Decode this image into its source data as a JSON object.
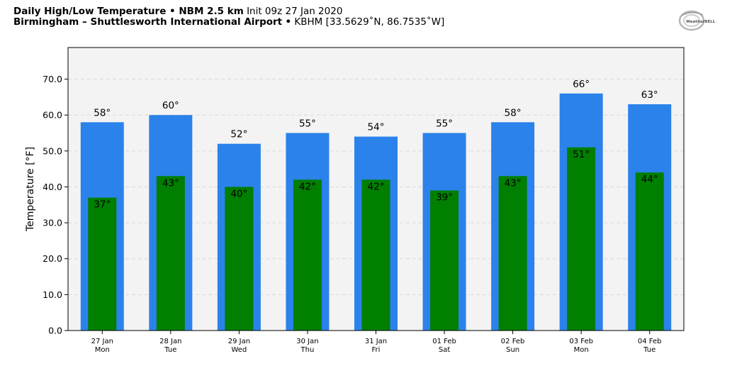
{
  "header": {
    "title_bold": "Daily High/Low Temperature • NBM 2.5 km",
    "title_init": "Init 09z 27 Jan 2020",
    "location_bold": "Birmingham – Shuttlesworth International Airport",
    "location_sep": "•",
    "location_detail": "KBHM [33.5629˚N, 86.7535˚W]"
  },
  "logo": {
    "text": "WeatherBELL"
  },
  "colors": {
    "high": "#2b82ea",
    "low": "#007f00",
    "plot_bg": "#f3f3f3",
    "grid": "#d9d9d9"
  },
  "chart_data": {
    "type": "bar",
    "categories": [
      {
        "date": "27 Jan",
        "day": "Mon"
      },
      {
        "date": "28 Jan",
        "day": "Tue"
      },
      {
        "date": "29 Jan",
        "day": "Wed"
      },
      {
        "date": "30 Jan",
        "day": "Thu"
      },
      {
        "date": "31 Jan",
        "day": "Fri"
      },
      {
        "date": "01 Feb",
        "day": "Sat"
      },
      {
        "date": "02 Feb",
        "day": "Sun"
      },
      {
        "date": "03 Feb",
        "day": "Mon"
      },
      {
        "date": "04 Feb",
        "day": "Tue"
      }
    ],
    "series": [
      {
        "values": [
          58,
          60,
          52,
          55,
          54,
          55,
          58,
          66,
          63
        ],
        "labels": [
          "58°",
          "60°",
          "52°",
          "55°",
          "54°",
          "55°",
          "58°",
          "66°",
          "63°"
        ]
      },
      {
        "values": [
          37,
          43,
          40,
          42,
          42,
          39,
          43,
          51,
          44
        ],
        "labels": [
          "37°",
          "43°",
          "40°",
          "42°",
          "42°",
          "39°",
          "43°",
          "51°",
          "44°"
        ]
      }
    ],
    "ylabel": "Temperature [°F]",
    "ylim": [
      0,
      70
    ],
    "yticks": [
      "0.0",
      "10.0",
      "20.0",
      "30.0",
      "40.0",
      "50.0",
      "60.0",
      "70.0"
    ],
    "ytick_values": [
      0,
      10,
      20,
      30,
      40,
      50,
      60,
      70
    ],
    "grid": true
  }
}
